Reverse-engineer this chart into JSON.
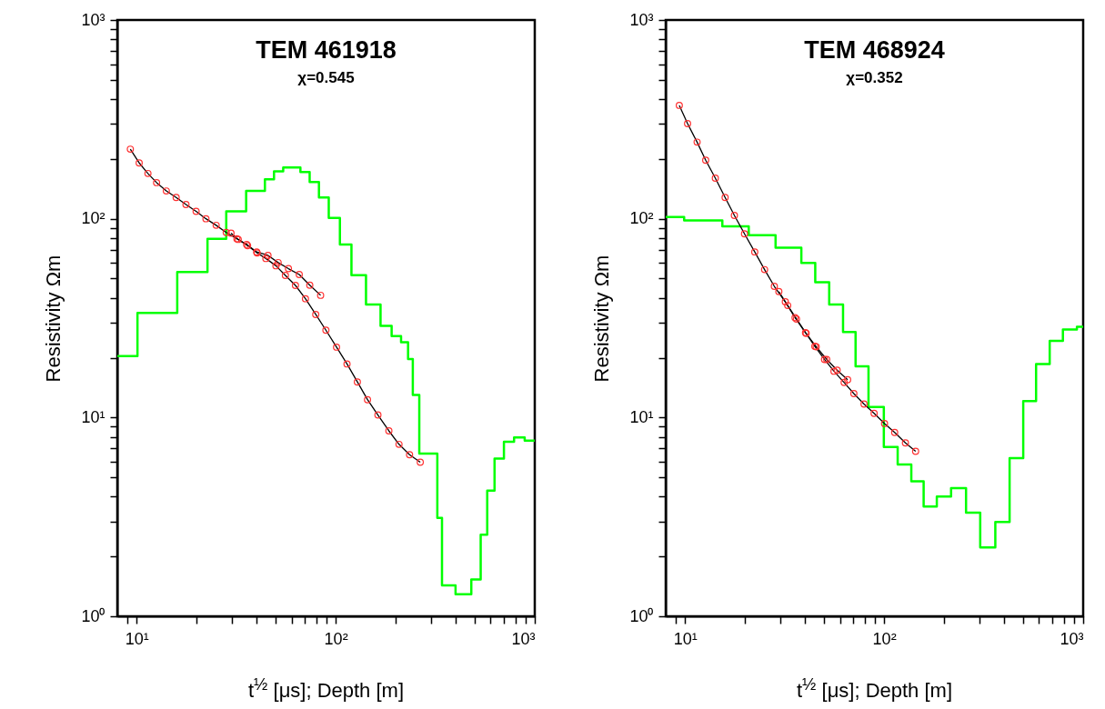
{
  "chart_data": [
    {
      "type": "line",
      "title": "TEM 461918",
      "subtitle": "χ=0.545",
      "xlabel": "t$^{½}$ [μs]; Depth [m]",
      "ylabel": "Resistivity Ωm",
      "log": "xy",
      "xlim": [
        8,
        1000
      ],
      "ylim": [
        1,
        1000
      ],
      "xticks": [
        {
          "value": 9,
          "label": null
        },
        {
          "value": 10,
          "label": "10¹"
        },
        {
          "value": 20,
          "label": null
        },
        {
          "value": 30,
          "label": null
        },
        {
          "value": 40,
          "label": null
        },
        {
          "value": 50,
          "label": null
        },
        {
          "value": 60,
          "label": null
        },
        {
          "value": 70,
          "label": null
        },
        {
          "value": 80,
          "label": null
        },
        {
          "value": 90,
          "label": null
        },
        {
          "value": 100,
          "label": "10²"
        },
        {
          "value": 200,
          "label": null
        },
        {
          "value": 300,
          "label": null
        },
        {
          "value": 400,
          "label": null
        },
        {
          "value": 500,
          "label": null
        },
        {
          "value": 600,
          "label": null
        },
        {
          "value": 700,
          "label": null
        },
        {
          "value": 800,
          "label": null
        },
        {
          "value": 900,
          "label": null
        },
        {
          "value": 1000,
          "label": "10³"
        }
      ],
      "yticks": [
        {
          "value": 1,
          "label": "10⁰"
        },
        {
          "value": 2,
          "label": null
        },
        {
          "value": 3,
          "label": null
        },
        {
          "value": 4,
          "label": null
        },
        {
          "value": 5,
          "label": null
        },
        {
          "value": 6,
          "label": null
        },
        {
          "value": 7,
          "label": null
        },
        {
          "value": 8,
          "label": null
        },
        {
          "value": 9,
          "label": null
        },
        {
          "value": 10,
          "label": "10¹"
        },
        {
          "value": 20,
          "label": null
        },
        {
          "value": 30,
          "label": null
        },
        {
          "value": 40,
          "label": null
        },
        {
          "value": 50,
          "label": null
        },
        {
          "value": 60,
          "label": null
        },
        {
          "value": 70,
          "label": null
        },
        {
          "value": 80,
          "label": null
        },
        {
          "value": 90,
          "label": null
        },
        {
          "value": 100,
          "label": "10²"
        },
        {
          "value": 200,
          "label": null
        },
        {
          "value": 300,
          "label": null
        },
        {
          "value": 400,
          "label": null
        },
        {
          "value": 500,
          "label": null
        },
        {
          "value": 600,
          "label": null
        },
        {
          "value": 700,
          "label": null
        },
        {
          "value": 800,
          "label": null
        },
        {
          "value": 900,
          "label": null
        },
        {
          "value": 1000,
          "label": "10³"
        }
      ],
      "series": [
        {
          "type": "step",
          "color": "#00ff00",
          "x": [
            8,
            10.1,
            16.0,
            22.7,
            28.2,
            35.5,
            44.1,
            49.0,
            54.5,
            66.5,
            74.0,
            82.4,
            92.3,
            105,
            120,
            142,
            168,
            191,
            213,
            231,
            244,
            263,
            324,
            342,
            400,
            480,
            535,
            577,
            628,
            700,
            787,
            890,
            1000
          ],
          "values": [
            20.4,
            33.6,
            54.0,
            79.3,
            109,
            138,
            158,
            173,
            181,
            172,
            153,
            128,
            101,
            74.3,
            52.0,
            37.0,
            28.9,
            25.7,
            23.9,
            19.7,
            13.0,
            6.58,
            3.13,
            1.43,
            1.29,
            1.53,
            2.57,
            4.29,
            6.22,
            7.55,
            7.94,
            7.66,
            7.66
          ]
        },
        {
          "type": "line",
          "color": "#000000",
          "x": [
            9.3,
            10.3,
            11.4,
            12.6,
            14.1,
            15.8,
            17.7,
            19.9,
            22.3,
            25.1,
            28.2,
            31.9,
            35.7,
            40.1,
            45.7,
            51.4,
            57.9,
            65.6,
            74.1,
            84.0
          ],
          "values": [
            224,
            191,
            169,
            152,
            138,
            128,
            118,
            109,
            100,
            92.7,
            85.3,
            79.3,
            74.3,
            68.1,
            65.4,
            60.2,
            56.1,
            52.4,
            46.3,
            41.2
          ]
        },
        {
          "type": "line",
          "color": "#000000",
          "x": [
            29.8,
            32.4,
            36.1,
            40.3,
            44.6,
            50.1,
            55.9,
            62.8,
            70.5,
            79.4,
            89.3,
            101,
            114,
            128.5,
            144.5,
            163,
            185,
            208,
            235,
            266
          ],
          "values": [
            84.6,
            78.7,
            73.2,
            67.3,
            63.1,
            58.0,
            51.9,
            46.2,
            39.6,
            33.0,
            27.5,
            22.6,
            18.6,
            15.1,
            12.3,
            10.3,
            8.57,
            7.33,
            6.5,
            5.96
          ]
        },
        {
          "type": "scatter",
          "color": "#ff3030",
          "marker": "circle",
          "x": [
            9.3,
            10.3,
            11.4,
            12.6,
            14.1,
            15.8,
            17.7,
            19.9,
            22.3,
            25.1,
            28.2,
            31.9,
            35.7,
            40.1,
            45.7,
            51.4,
            57.9,
            65.6,
            74.1,
            84.0
          ],
          "values": [
            224,
            191,
            169,
            152,
            138,
            128,
            118,
            109,
            100,
            92.7,
            85.3,
            79.3,
            74.3,
            68.1,
            65.4,
            60.2,
            56.1,
            52.4,
            46.3,
            41.2
          ]
        },
        {
          "type": "scatter",
          "color": "#ff3030",
          "marker": "circle",
          "x": [
            29.8,
            32.4,
            36.1,
            40.3,
            44.6,
            50.1,
            55.9,
            62.8,
            70.5,
            79.4,
            89.3,
            101,
            114,
            128.5,
            144.5,
            163,
            185,
            208,
            235,
            266
          ],
          "values": [
            84.6,
            78.7,
            73.2,
            67.3,
            63.1,
            58.0,
            51.9,
            46.2,
            39.6,
            33.0,
            27.5,
            22.6,
            18.6,
            15.1,
            12.3,
            10.3,
            8.57,
            7.33,
            6.5,
            5.96
          ]
        }
      ]
    },
    {
      "type": "line",
      "title": "TEM 468924",
      "subtitle": "χ=0.352",
      "xlabel": "t$^{½}$ [μs]; Depth [m]",
      "ylabel": "Resistivity Ωm",
      "log": "xy",
      "xlim": [
        8,
        1000
      ],
      "ylim": [
        1,
        1000
      ],
      "xticks": [
        {
          "value": 9,
          "label": null
        },
        {
          "value": 10,
          "label": "10¹"
        },
        {
          "value": 20,
          "label": null
        },
        {
          "value": 30,
          "label": null
        },
        {
          "value": 40,
          "label": null
        },
        {
          "value": 50,
          "label": null
        },
        {
          "value": 60,
          "label": null
        },
        {
          "value": 70,
          "label": null
        },
        {
          "value": 80,
          "label": null
        },
        {
          "value": 90,
          "label": null
        },
        {
          "value": 100,
          "label": "10²"
        },
        {
          "value": 200,
          "label": null
        },
        {
          "value": 300,
          "label": null
        },
        {
          "value": 400,
          "label": null
        },
        {
          "value": 500,
          "label": null
        },
        {
          "value": 600,
          "label": null
        },
        {
          "value": 700,
          "label": null
        },
        {
          "value": 800,
          "label": null
        },
        {
          "value": 900,
          "label": null
        },
        {
          "value": 1000,
          "label": "10³"
        }
      ],
      "yticks": [
        {
          "value": 1,
          "label": "10⁰"
        },
        {
          "value": 2,
          "label": null
        },
        {
          "value": 3,
          "label": null
        },
        {
          "value": 4,
          "label": null
        },
        {
          "value": 5,
          "label": null
        },
        {
          "value": 6,
          "label": null
        },
        {
          "value": 7,
          "label": null
        },
        {
          "value": 8,
          "label": null
        },
        {
          "value": 9,
          "label": null
        },
        {
          "value": 10,
          "label": "10¹"
        },
        {
          "value": 20,
          "label": null
        },
        {
          "value": 30,
          "label": null
        },
        {
          "value": 40,
          "label": null
        },
        {
          "value": 50,
          "label": null
        },
        {
          "value": 60,
          "label": null
        },
        {
          "value": 70,
          "label": null
        },
        {
          "value": 80,
          "label": null
        },
        {
          "value": 90,
          "label": null
        },
        {
          "value": 100,
          "label": "10²"
        },
        {
          "value": 200,
          "label": null
        },
        {
          "value": 300,
          "label": null
        },
        {
          "value": 400,
          "label": null
        },
        {
          "value": 500,
          "label": null
        },
        {
          "value": 600,
          "label": null
        },
        {
          "value": 700,
          "label": null
        },
        {
          "value": 800,
          "label": null
        },
        {
          "value": 900,
          "label": null
        },
        {
          "value": 1000,
          "label": "10³"
        }
      ],
      "series": [
        {
          "type": "step",
          "color": "#00ff00",
          "x": [
            8,
            9.9,
            15.4,
            20.9,
            28.5,
            38.4,
            45.1,
            53.0,
            62.2,
            71.9,
            83.5,
            99.7,
            117,
            137,
            158,
            184,
            217,
            258,
            304,
            362,
            427,
            500,
            580,
            679,
            791,
            930,
            1000
          ],
          "values": [
            102,
            98.0,
            91.5,
            82.7,
            71.5,
            59.9,
            47.9,
            37.0,
            26.9,
            18.1,
            11.3,
            7.1,
            5.8,
            4.78,
            3.57,
            4.0,
            4.41,
            3.32,
            2.22,
            2.98,
            6.24,
            12.1,
            18.6,
            24.3,
            27.7,
            28.6,
            28.6
          ]
        },
        {
          "type": "line",
          "color": "#000000",
          "x": [
            9.36,
            10.3,
            11.5,
            12.7,
            14.2,
            15.9,
            17.7,
            19.9,
            22.4,
            25.1,
            28.1,
            31.9,
            35.7,
            40.3,
            45.6,
            51.5,
            58.1,
            65.6
          ],
          "values": [
            372,
            301,
            243,
            197,
            160,
            128,
            104,
            84.0,
            68.1,
            55.5,
            45.7,
            38.2,
            31.8,
            26.7,
            22.7,
            19.6,
            17.3,
            15.5
          ]
        },
        {
          "type": "line",
          "color": "#000000",
          "x": [
            29.6,
            32.8,
            36.3,
            40.6,
            44.9,
            50.2,
            56.0,
            63.0,
            70.5,
            79.3,
            89.1,
            100.5,
            113,
            128,
            144
          ],
          "values": [
            43.0,
            36.6,
            31.3,
            26.5,
            22.8,
            19.6,
            17.1,
            15.0,
            13.2,
            11.7,
            10.5,
            9.33,
            8.41,
            7.45,
            6.76
          ]
        },
        {
          "type": "scatter",
          "color": "#ff3030",
          "marker": "circle",
          "x": [
            9.36,
            10.3,
            11.5,
            12.7,
            14.2,
            15.9,
            17.7,
            19.9,
            22.4,
            25.1,
            28.1,
            31.9,
            35.7,
            40.3,
            45.6,
            51.5,
            58.1,
            65.6
          ],
          "values": [
            372,
            301,
            243,
            197,
            160,
            128,
            104,
            84.0,
            68.1,
            55.5,
            45.7,
            38.2,
            31.8,
            26.7,
            22.7,
            19.6,
            17.3,
            15.5
          ]
        },
        {
          "type": "scatter",
          "color": "#ff3030",
          "marker": "circle",
          "x": [
            29.6,
            32.8,
            36.3,
            40.6,
            44.9,
            50.2,
            56.0,
            63.0,
            70.5,
            79.3,
            89.1,
            100.5,
            113,
            128,
            144
          ],
          "values": [
            43.0,
            36.6,
            31.3,
            26.5,
            22.8,
            19.6,
            17.1,
            15.0,
            13.2,
            11.7,
            10.5,
            9.33,
            8.41,
            7.45,
            6.76
          ]
        }
      ]
    }
  ]
}
